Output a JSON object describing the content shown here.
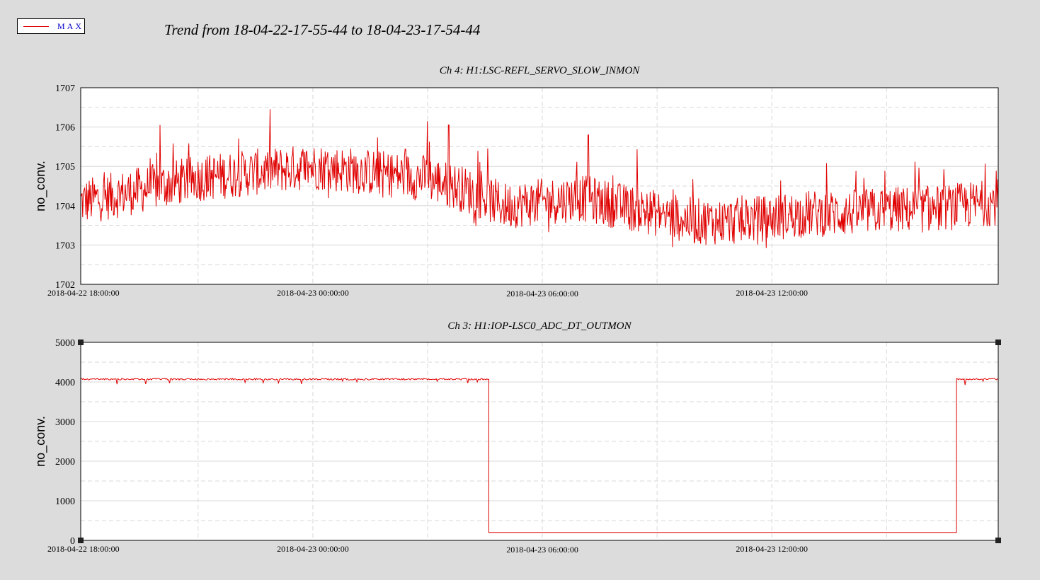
{
  "legend": {
    "label": "MAX",
    "color": "#e00000"
  },
  "title": "Trend from 18-04-22-17-55-44 to 18-04-23-17-54-44",
  "chart_data": [
    {
      "type": "line",
      "title": "Ch 4: H1:LSC-REFL_SERVO_SLOW_INMON",
      "ylabel": "no_conv.",
      "ylim": [
        1702,
        1707
      ],
      "yticks": [
        "1702",
        "1703",
        "1704",
        "1705",
        "1706",
        "1707"
      ],
      "xlim_hours": [
        -0.07,
        23.92
      ],
      "xticks": [
        {
          "label": "2018-04-22 18:00:00",
          "hour": 0
        },
        {
          "label": "2018-04-23 00:00:00",
          "hour": 6
        },
        {
          "label": "2018-04-23 06:00:00",
          "hour": 12
        },
        {
          "label": "2018-04-23 12:00:00",
          "hour": 18
        }
      ],
      "grid": true,
      "series": [
        {
          "name": "MAX",
          "color": "#e00000",
          "x_hours": [
            0,
            1,
            2,
            3,
            4,
            5,
            6,
            7,
            8,
            9,
            10,
            11,
            12,
            13,
            14,
            15,
            16,
            17,
            18,
            19,
            20,
            21,
            22,
            23,
            23.9
          ],
          "mean": [
            1704.1,
            1704.3,
            1704.5,
            1704.7,
            1704.8,
            1704.9,
            1705.0,
            1704.9,
            1704.8,
            1704.7,
            1704.4,
            1704.0,
            1704.1,
            1704.2,
            1704.0,
            1703.8,
            1703.6,
            1703.6,
            1703.7,
            1703.8,
            1703.8,
            1703.9,
            1703.9,
            1704.0,
            1704.1
          ],
          "spikes": [
            {
              "hour": 2.0,
              "value": 1706.05
            },
            {
              "hour": 9.0,
              "value": 1706.15
            },
            {
              "hour": 9.55,
              "value": 1706.05
            },
            {
              "hour": 13.2,
              "value": 1705.8
            },
            {
              "hour": 15.4,
              "value": 1702.95
            }
          ]
        }
      ]
    },
    {
      "type": "line",
      "title": "Ch 3: H1:IOP-LSC0_ADC_DT_OUTMON",
      "ylabel": "no_conv.",
      "ylim": [
        0,
        5000
      ],
      "yticks": [
        "0",
        "1000",
        "2000",
        "3000",
        "4000",
        "5000"
      ],
      "xlim_hours": [
        -0.07,
        23.92
      ],
      "xticks": [
        {
          "label": "2018-04-22 18:00:00",
          "hour": 0
        },
        {
          "label": "2018-04-23 00:00:00",
          "hour": 6
        },
        {
          "label": "2018-04-23 06:00:00",
          "hour": 12
        },
        {
          "label": "2018-04-23 12:00:00",
          "hour": 18
        }
      ],
      "grid": true,
      "series": [
        {
          "name": "MAX",
          "color": "#e00000",
          "segments": [
            {
              "from_hour": -0.07,
              "to_hour": 10.6,
              "value": 4090
            },
            {
              "from_hour": 10.6,
              "to_hour": 22.83,
              "value": 200
            },
            {
              "from_hour": 22.83,
              "to_hour": 23.92,
              "value": 4090
            }
          ]
        }
      ]
    }
  ]
}
